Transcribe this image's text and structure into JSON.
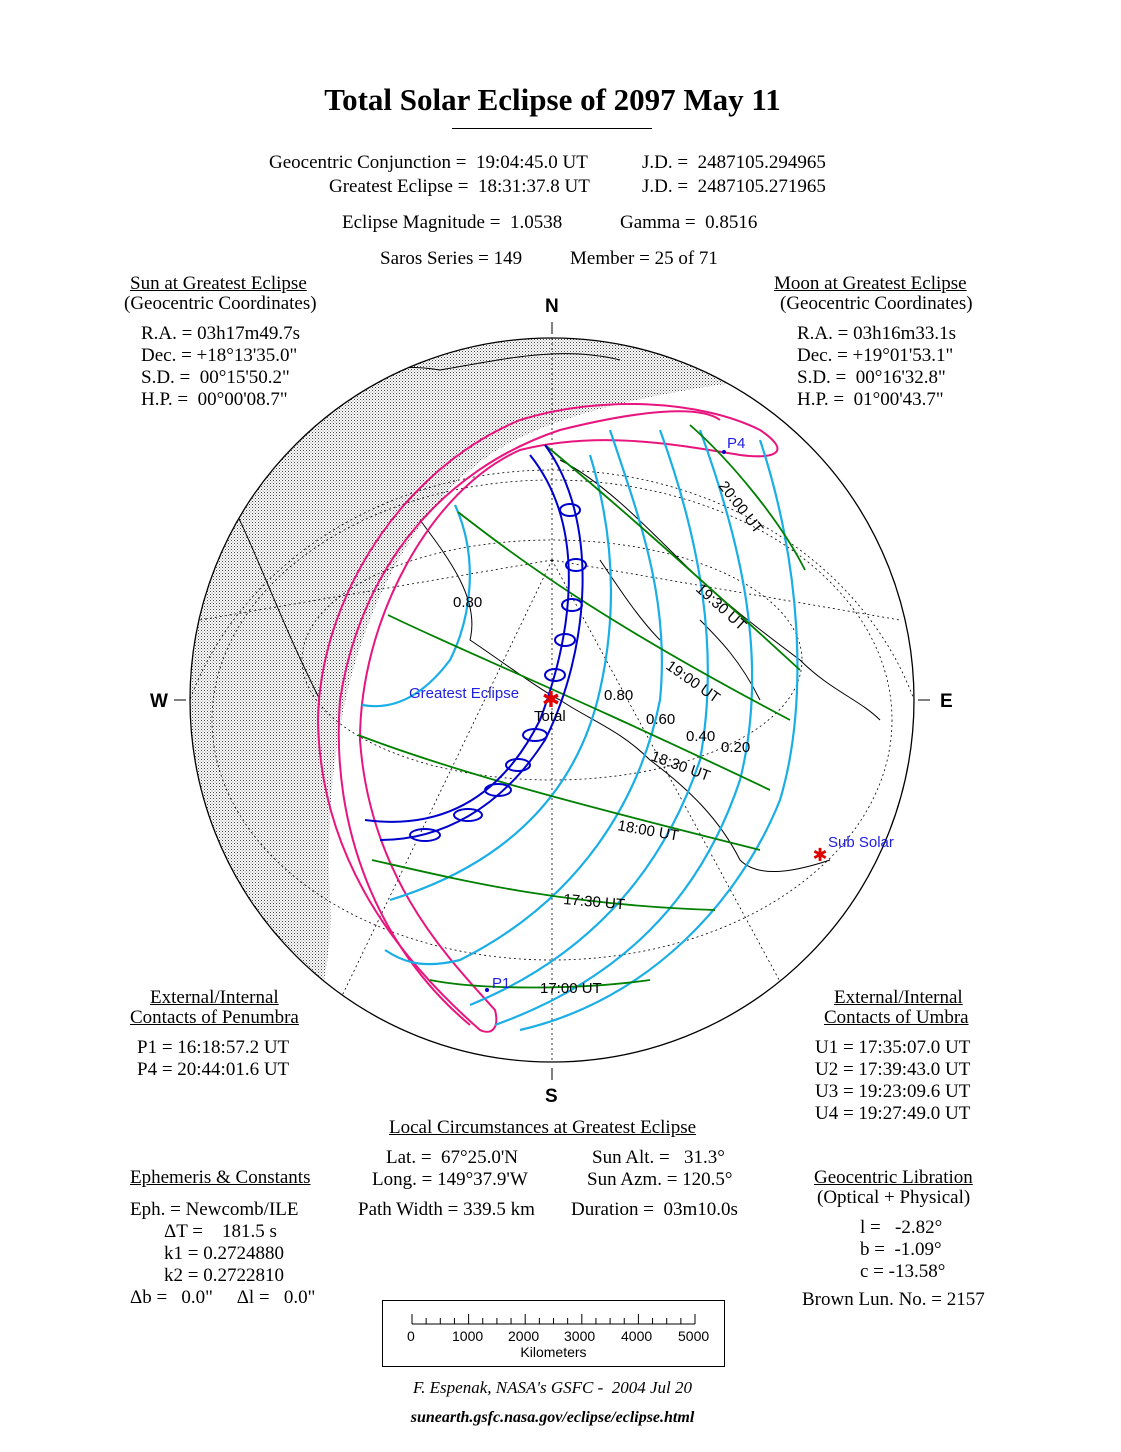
{
  "title": "Total Solar Eclipse of  2097 May 11",
  "header": {
    "conjunction": "Geocentric Conjunction =  19:04:45.0 UT",
    "conjunction_jd": "J.D. =  2487105.294965",
    "greatest": "Greatest Eclipse =  18:31:37.8 UT",
    "greatest_jd": "J.D. =  2487105.271965",
    "magnitude": "Eclipse Magnitude =  1.0538",
    "gamma": "Gamma =  0.8516",
    "saros": "Saros Series = 149",
    "member": "Member = 25 of 71"
  },
  "sun": {
    "heading": "Sun at Greatest Eclipse",
    "sub": "(Geocentric Coordinates)",
    "lines": [
      "R.A. = 03h17m49.7s",
      "Dec. = +18°13'35.0\"",
      "S.D. =  00°15'50.2\"",
      "H.P. =  00°00'08.7\""
    ]
  },
  "moon": {
    "heading": "Moon at Greatest Eclipse",
    "sub": "(Geocentric Coordinates)",
    "lines": [
      "R.A. = 03h16m33.1s",
      "Dec. = +19°01'53.1\"",
      "S.D. =  00°16'32.8\"",
      "H.P. =  01°00'43.7\""
    ]
  },
  "directions": {
    "n": "N",
    "s": "S",
    "w": "W",
    "e": "E"
  },
  "map_labels": {
    "t2000": "20:00 UT",
    "t1930": "19:30 UT",
    "t1900": "19:00 UT",
    "t1830": "18:30 UT",
    "t1800": "18:00 UT",
    "t1730": "17:30 UT",
    "t1700": "17:00 UT",
    "m080a": "0.80",
    "m080b": "0.80",
    "m060": "0.60",
    "m040": "0.40",
    "m020": "0.20",
    "greatest": "Greatest Eclipse",
    "total": "Total",
    "subsolar": "Sub Solar",
    "p1": "P1",
    "p4": "P4"
  },
  "colors": {
    "penumbra": "#e8157f",
    "magnitude": "#1aaee6",
    "time": "#008000",
    "umbra": "#0000cc",
    "marker": "#e00000"
  },
  "penumbra": {
    "heading1": "External/Internal",
    "heading2": "Contacts of Penumbra",
    "lines": [
      "P1 = 16:18:57.2 UT",
      "P4 = 20:44:01.6 UT"
    ]
  },
  "umbra": {
    "heading1": "External/Internal",
    "heading2": "Contacts of Umbra",
    "lines": [
      "U1 = 17:35:07.0 UT",
      "U2 = 17:39:43.0 UT",
      "U3 = 19:23:09.6 UT",
      "U4 = 19:27:49.0 UT"
    ]
  },
  "local": {
    "heading": "Local Circumstances at Greatest Eclipse",
    "lat": "Lat. =  67°25.0'N",
    "sun_alt": "Sun Alt. =   31.3°",
    "long": "Long. = 149°37.9'W",
    "sun_azm": "Sun Azm. = 120.5°",
    "path_width": "Path Width = 339.5 km",
    "duration": "Duration =  03m10.0s"
  },
  "ephemeris": {
    "heading": "Ephemeris & Constants",
    "eph": "Eph. = Newcomb/ILE",
    "dt": "ΔT =    181.5 s",
    "k1": "k1 = 0.2724880",
    "k2": "k2 = 0.2722810",
    "db": "Δb =   0.0\"     Δl =   0.0\""
  },
  "libration": {
    "heading": "Geocentric Libration",
    "sub": "(Optical + Physical)",
    "l": "l =   -2.82°",
    "b": "b =  -1.09°",
    "c": "c = -13.58°",
    "brown": "Brown Lun. No. = 2157"
  },
  "scale": {
    "ticks": [
      "0",
      "1000",
      "2000",
      "3000",
      "4000",
      "5000"
    ],
    "unit": "Kilometers"
  },
  "credit": {
    "author": "F. Espenak, NASA's GSFC -  2004 Jul 20",
    "url": "sunearth.gsfc.nasa.gov/eclipse/eclipse.html"
  }
}
